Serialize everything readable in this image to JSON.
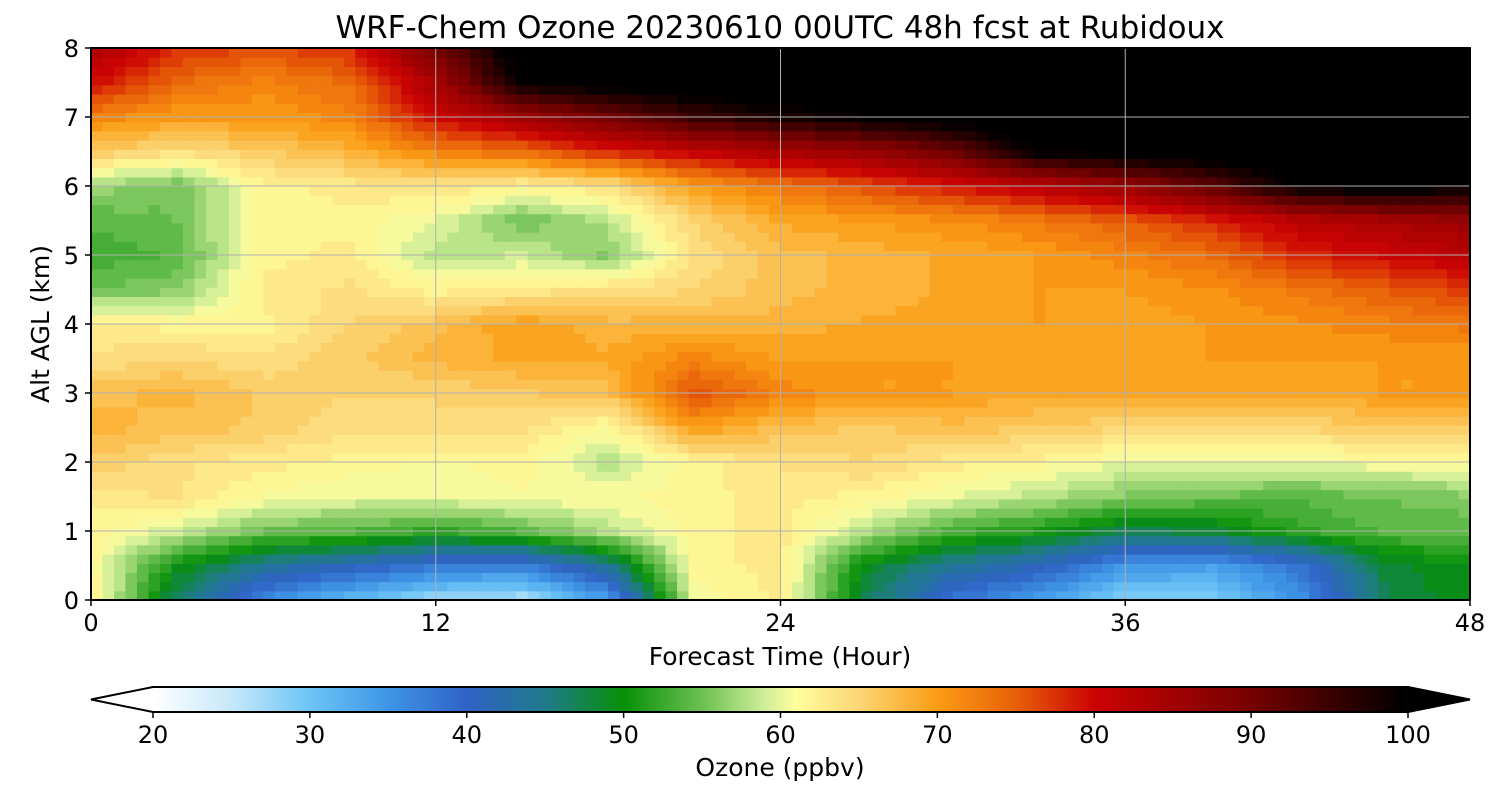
{
  "chart_data": {
    "type": "heatmap",
    "title": "WRF-Chem Ozone  20230610 00UTC 48h fcst at Rubidoux",
    "xlabel": "Forecast Time (Hour)",
    "ylabel": "Alt AGL (km)",
    "xlim": [
      0,
      48
    ],
    "ylim": [
      0,
      8
    ],
    "x_ticks": [
      0,
      12,
      24,
      36,
      48
    ],
    "y_ticks": [
      0,
      1,
      2,
      3,
      4,
      5,
      6,
      7,
      8
    ],
    "grid": true,
    "units": "ppbv",
    "x": [
      0,
      3,
      6,
      9,
      12,
      15,
      18,
      21,
      24,
      27,
      30,
      33,
      36,
      39,
      42,
      45,
      48
    ],
    "y": [
      0,
      0.5,
      1,
      1.5,
      2,
      2.5,
      3,
      3.5,
      4,
      4.5,
      5,
      5.5,
      6,
      6.5,
      7,
      7.5,
      8
    ],
    "z": [
      [
        63,
        46,
        36,
        31,
        27,
        26,
        34,
        60,
        63,
        47,
        38,
        34,
        28,
        29,
        35,
        47,
        50
      ],
      [
        62,
        50,
        44,
        41,
        38,
        37,
        44,
        62,
        63,
        49,
        44,
        41,
        35,
        34,
        38,
        48,
        50
      ],
      [
        62,
        59,
        55,
        54,
        52,
        54,
        58,
        62,
        63,
        58,
        53,
        51,
        47,
        48,
        52,
        54,
        54
      ],
      [
        63,
        64,
        61,
        60,
        60,
        61,
        61,
        62,
        63,
        62,
        60,
        58,
        56,
        55,
        54,
        55,
        56
      ],
      [
        66,
        64,
        63,
        62,
        61,
        62,
        58,
        62,
        64,
        65,
        63,
        62,
        60,
        60,
        60,
        61,
        61
      ],
      [
        68,
        67,
        66,
        64,
        65,
        64,
        61,
        70,
        67,
        66,
        67,
        66,
        65,
        65,
        65,
        66,
        66
      ],
      [
        67,
        68,
        66,
        65,
        65,
        66,
        67,
        76,
        72,
        70,
        70,
        69,
        70,
        69,
        69,
        70,
        70
      ],
      [
        64,
        65,
        64,
        66,
        68,
        69,
        69,
        72,
        70,
        70,
        70,
        69,
        70,
        70,
        70,
        70,
        70
      ],
      [
        63,
        62,
        62,
        65,
        67,
        70,
        68,
        68,
        68,
        69,
        69,
        70,
        69,
        70,
        71,
        72,
        73
      ],
      [
        55,
        56,
        63,
        64,
        62,
        63,
        64,
        65,
        67,
        68,
        69,
        70,
        70,
        71,
        73,
        75,
        77
      ],
      [
        53,
        54,
        62,
        63,
        58,
        59,
        56,
        64,
        67,
        68,
        69,
        70,
        72,
        74,
        78,
        80,
        82
      ],
      [
        54,
        55,
        62,
        62,
        60,
        55,
        58,
        65,
        69,
        70,
        71,
        73,
        75,
        78,
        82,
        84,
        86
      ],
      [
        57,
        55,
        62,
        63,
        64,
        62,
        64,
        70,
        73,
        76,
        79,
        82,
        86,
        92,
        100,
        102,
        100
      ],
      [
        66,
        64,
        66,
        68,
        72,
        74,
        78,
        81,
        84,
        86,
        91,
        100,
        102,
        103,
        104,
        104,
        102
      ],
      [
        72,
        70,
        70,
        72,
        80,
        85,
        90,
        95,
        98,
        100,
        102,
        104,
        104,
        104,
        104,
        104,
        100
      ],
      [
        80,
        74,
        72,
        74,
        84,
        100,
        102,
        103,
        104,
        104,
        104,
        104,
        104,
        104,
        104,
        104,
        102
      ],
      [
        84,
        78,
        76,
        78,
        90,
        103,
        104,
        104,
        104,
        104,
        104,
        104,
        104,
        104,
        104,
        104,
        103
      ]
    ],
    "colorbar": {
      "label": "Ozone  (ppbv)",
      "min": 20,
      "max": 100,
      "ticks": [
        20,
        30,
        40,
        50,
        60,
        70,
        80,
        90,
        100
      ],
      "extend": "both",
      "stops": [
        [
          20,
          "#ffffff"
        ],
        [
          25,
          "#c6e8fa"
        ],
        [
          30,
          "#6cc4f6"
        ],
        [
          35,
          "#3f96e6"
        ],
        [
          40,
          "#2f62c6"
        ],
        [
          45,
          "#1f7a8a"
        ],
        [
          50,
          "#079007"
        ],
        [
          55,
          "#6cc052"
        ],
        [
          59,
          "#d0ee98"
        ],
        [
          61,
          "#fffd9d"
        ],
        [
          65,
          "#fbd676"
        ],
        [
          70,
          "#fb9d14"
        ],
        [
          75,
          "#e86008"
        ],
        [
          80,
          "#cc0303"
        ],
        [
          90,
          "#760101"
        ],
        [
          100,
          "#000000"
        ]
      ]
    }
  }
}
